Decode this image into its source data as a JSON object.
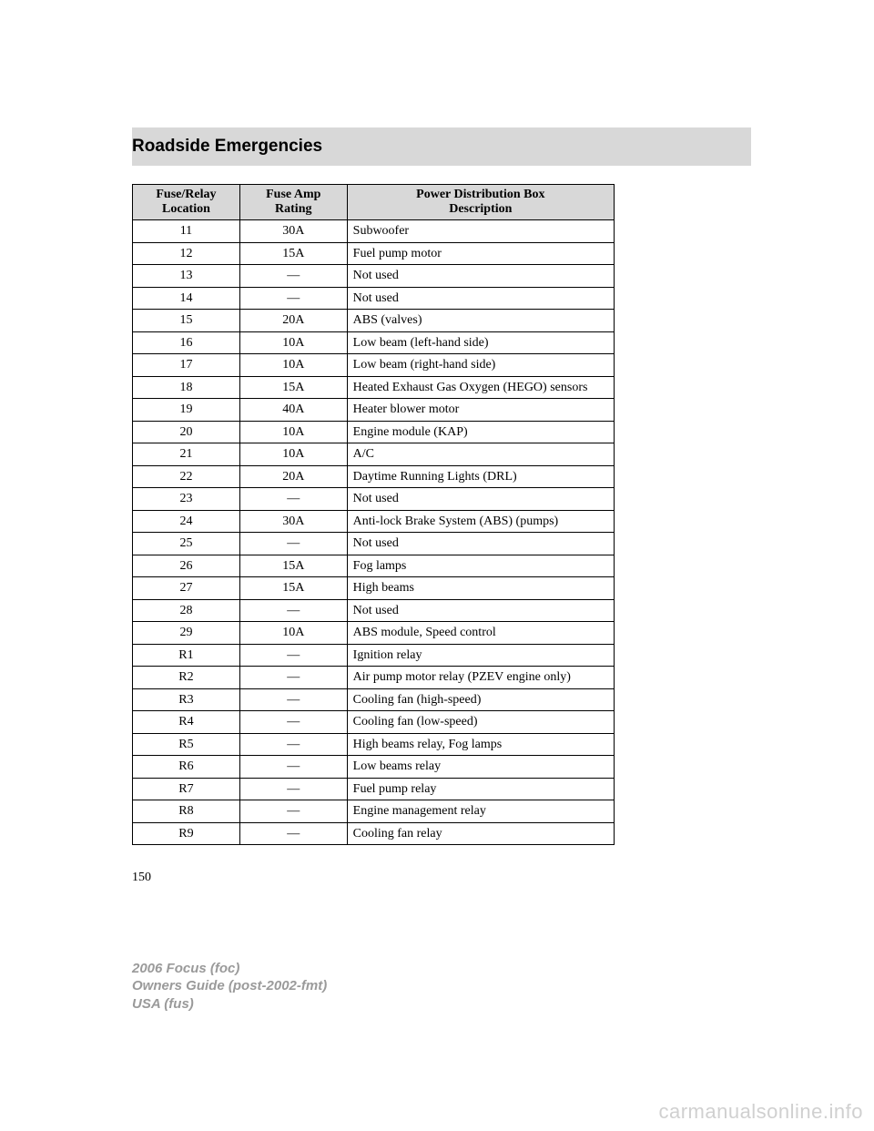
{
  "section_title": "Roadside Emergencies",
  "table": {
    "headers": {
      "col1_line1": "Fuse/Relay",
      "col1_line2": "Location",
      "col2_line1": "Fuse Amp",
      "col2_line2": "Rating",
      "col3_line1": "Power Distribution Box",
      "col3_line2": "Description"
    },
    "rows": [
      {
        "loc": "11",
        "amp": "30A",
        "desc": "Subwoofer"
      },
      {
        "loc": "12",
        "amp": "15A",
        "desc": "Fuel pump motor"
      },
      {
        "loc": "13",
        "amp": "—",
        "desc": "Not used"
      },
      {
        "loc": "14",
        "amp": "—",
        "desc": "Not used"
      },
      {
        "loc": "15",
        "amp": "20A",
        "desc": "ABS (valves)"
      },
      {
        "loc": "16",
        "amp": "10A",
        "desc": "Low beam (left-hand side)"
      },
      {
        "loc": "17",
        "amp": "10A",
        "desc": "Low beam (right-hand side)"
      },
      {
        "loc": "18",
        "amp": "15A",
        "desc": "Heated Exhaust Gas Oxygen (HEGO) sensors"
      },
      {
        "loc": "19",
        "amp": "40A",
        "desc": "Heater blower motor"
      },
      {
        "loc": "20",
        "amp": "10A",
        "desc": "Engine module (KAP)"
      },
      {
        "loc": "21",
        "amp": "10A",
        "desc": "A/C"
      },
      {
        "loc": "22",
        "amp": "20A",
        "desc": "Daytime Running Lights (DRL)"
      },
      {
        "loc": "23",
        "amp": "—",
        "desc": "Not used"
      },
      {
        "loc": "24",
        "amp": "30A",
        "desc": "Anti-lock Brake System (ABS) (pumps)"
      },
      {
        "loc": "25",
        "amp": "—",
        "desc": "Not used"
      },
      {
        "loc": "26",
        "amp": "15A",
        "desc": "Fog lamps"
      },
      {
        "loc": "27",
        "amp": "15A",
        "desc": "High beams"
      },
      {
        "loc": "28",
        "amp": "—",
        "desc": "Not used"
      },
      {
        "loc": "29",
        "amp": "10A",
        "desc": "ABS module, Speed control"
      },
      {
        "loc": "R1",
        "amp": "—",
        "desc": "Ignition relay"
      },
      {
        "loc": "R2",
        "amp": "—",
        "desc": "Air pump motor relay (PZEV engine only)"
      },
      {
        "loc": "R3",
        "amp": "—",
        "desc": "Cooling fan (high-speed)"
      },
      {
        "loc": "R4",
        "amp": "—",
        "desc": "Cooling fan (low-speed)"
      },
      {
        "loc": "R5",
        "amp": "—",
        "desc": "High beams relay, Fog lamps"
      },
      {
        "loc": "R6",
        "amp": "—",
        "desc": "Low beams relay"
      },
      {
        "loc": "R7",
        "amp": "—",
        "desc": "Fuel pump relay"
      },
      {
        "loc": "R8",
        "amp": "—",
        "desc": "Engine management relay"
      },
      {
        "loc": "R9",
        "amp": "—",
        "desc": "Cooling fan relay"
      }
    ]
  },
  "page_number": "150",
  "footer": {
    "line1a": "2006 Focus",
    "line1b": "(foc)",
    "line2a": "Owners Guide",
    "line2b": "(post-2002-fmt)",
    "line3a": "USA",
    "line3b": "(fus)"
  },
  "watermark": "carmanualsonline.info"
}
